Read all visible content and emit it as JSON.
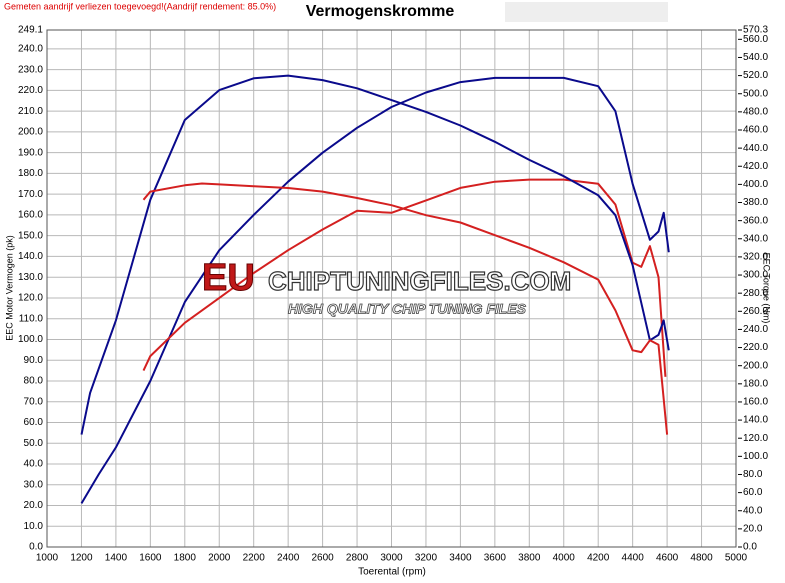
{
  "chart_data": {
    "type": "line",
    "title": "Vermogenskromme",
    "subtitle": "Gemeten aandrijf verliezen toegevoegd!(Aandrijf rendement: 85.0%)",
    "xlabel": "Toerental (rpm)",
    "ylabel": "EEC Motor Vermogen (pk)",
    "y2label": "EEC Torque (Nm)",
    "annotations": [
      "EU",
      "CHIPTUNINGFILES.COM",
      "HIGH QUALITY CHIP TUNING FILES"
    ],
    "grid": true,
    "xlim": [
      1000,
      5000
    ],
    "xticks": [
      1000,
      1200,
      1400,
      1600,
      1800,
      2000,
      2200,
      2400,
      2600,
      2800,
      3000,
      3200,
      3400,
      3600,
      3800,
      4000,
      4200,
      4400,
      4600,
      4800,
      5000
    ],
    "ylim": [
      0,
      249.1
    ],
    "yticks": [
      {
        "value": 0,
        "label": "0.0"
      },
      {
        "value": 10,
        "label": "10.0"
      },
      {
        "value": 20,
        "label": "20.0"
      },
      {
        "value": 30,
        "label": "30.0"
      },
      {
        "value": 40,
        "label": "40.0"
      },
      {
        "value": 50,
        "label": "50.0"
      },
      {
        "value": 60,
        "label": "60.0"
      },
      {
        "value": 70,
        "label": "70.0"
      },
      {
        "value": 80,
        "label": "80.0"
      },
      {
        "value": 90,
        "label": "90.0"
      },
      {
        "value": 100,
        "label": "100.0"
      },
      {
        "value": 110,
        "label": "110.0"
      },
      {
        "value": 120,
        "label": "120.0"
      },
      {
        "value": 130,
        "label": "130.0"
      },
      {
        "value": 140,
        "label": "140.0"
      },
      {
        "value": 150,
        "label": "150.0"
      },
      {
        "value": 160,
        "label": "160.0"
      },
      {
        "value": 170,
        "label": "170.0"
      },
      {
        "value": 180,
        "label": "180.0"
      },
      {
        "value": 190,
        "label": "190.0"
      },
      {
        "value": 200,
        "label": "200.0"
      },
      {
        "value": 210,
        "label": "210.0"
      },
      {
        "value": 220,
        "label": "220.0"
      },
      {
        "value": 230,
        "label": "230.0"
      },
      {
        "value": 240,
        "label": "240.0"
      },
      249.1
    ],
    "y2lim": [
      0,
      570.3
    ],
    "y2ticks": [
      {
        "value": 0,
        "label": "0.0"
      },
      {
        "value": 20,
        "label": "20.0"
      },
      {
        "value": 40,
        "label": "40.0"
      },
      {
        "value": 60,
        "label": "60.0"
      },
      {
        "value": 80,
        "label": "80.0"
      },
      {
        "value": 100,
        "label": "100.0"
      },
      {
        "value": 120,
        "label": "120.0"
      },
      {
        "value": 140,
        "label": "140.0"
      },
      {
        "value": 160,
        "label": "160.0"
      },
      {
        "value": 180,
        "label": "180.0"
      },
      {
        "value": 200,
        "label": "200.0"
      },
      {
        "value": 220,
        "label": "220.0"
      },
      {
        "value": 240,
        "label": "240.0"
      },
      {
        "value": 260,
        "label": "260.0"
      },
      {
        "value": 280,
        "label": "280.0"
      },
      {
        "value": 300,
        "label": "300.0"
      },
      {
        "value": 320,
        "label": "320.0"
      },
      {
        "value": 340,
        "label": "340.0"
      },
      {
        "value": 360,
        "label": "360.0"
      },
      {
        "value": 380,
        "label": "380.0"
      },
      {
        "value": 400,
        "label": "400.0"
      },
      {
        "value": 420,
        "label": "420.0"
      },
      {
        "value": 440,
        "label": "440.0"
      },
      {
        "value": 460,
        "label": "460.0"
      },
      {
        "value": 480,
        "label": "480.0"
      },
      {
        "value": 500,
        "label": "500.0"
      },
      {
        "value": 520,
        "label": "520.0"
      },
      {
        "value": 540,
        "label": "540.0"
      },
      {
        "value": 560,
        "label": "560.0"
      },
      570.3
    ],
    "series": [
      {
        "color": "#0a0a8c",
        "x": [
          1200,
          1300,
          1400,
          1600,
          1800,
          2000,
          2200,
          2400,
          2600,
          2800,
          3000,
          3200,
          3400,
          3600,
          3800,
          4000,
          4200,
          4300,
          4400,
          4500,
          4550,
          4580,
          4610
        ],
        "values": [
          21,
          35,
          48,
          80,
          118,
          143,
          160,
          176,
          190,
          202,
          212,
          219,
          224,
          226,
          226,
          226,
          222,
          210,
          175,
          148,
          152,
          161,
          142
        ]
      },
      {
        "color": "#d42020",
        "x": [
          1560,
          1600,
          1800,
          2000,
          2200,
          2400,
          2600,
          2800,
          3000,
          3200,
          3400,
          3600,
          3800,
          4000,
          4200,
          4300,
          4400,
          4450,
          4500,
          4550,
          4590
        ],
        "values": [
          85,
          92,
          108,
          120,
          132,
          143,
          153,
          162,
          161,
          167,
          173,
          176,
          177,
          177,
          175,
          165,
          137,
          135,
          145,
          130,
          82
        ]
      },
      {
        "color": "#0a0a8c",
        "axis": "y2",
        "x": [
          1200,
          1250,
          1400,
          1600,
          1800,
          2000,
          2200,
          2400,
          2600,
          2800,
          3000,
          3200,
          3400,
          3600,
          3800,
          4000,
          4200,
          4300,
          4400,
          4500,
          4550,
          4580,
          4610
        ],
        "values": [
          124,
          170,
          250,
          383,
          471,
          504,
          517,
          520,
          515,
          506,
          493,
          480,
          465,
          447,
          427,
          409,
          388,
          366,
          311,
          228,
          234,
          250,
          217
        ]
      },
      {
        "color": "#d42020",
        "axis": "y2",
        "x": [
          1560,
          1600,
          1800,
          1900,
          2000,
          2200,
          2400,
          2600,
          2800,
          3000,
          3200,
          3400,
          3600,
          3800,
          4000,
          4200,
          4300,
          4400,
          4450,
          4500,
          4550,
          4600
        ],
        "values": [
          383,
          392,
          399,
          401,
          400,
          398,
          396,
          392,
          385,
          377,
          366,
          358,
          344,
          330,
          314,
          295,
          261,
          217,
          215,
          228,
          223,
          124
        ]
      }
    ]
  }
}
